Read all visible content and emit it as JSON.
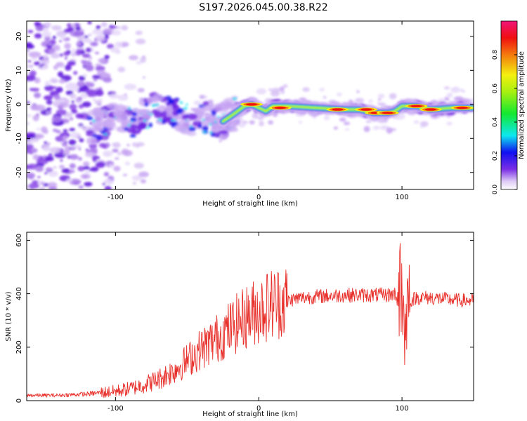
{
  "title": "S197.2026.045.00.38.R22",
  "chart_data": [
    {
      "type": "heatmap",
      "title": "S197.2026.045.00.38.R22",
      "xlabel": "Height of straight line (km)",
      "ylabel": "Frequency (Hz)",
      "xlim": [
        -162,
        150
      ],
      "ylim": [
        -25,
        24.5
      ],
      "xticks": [
        -100,
        0,
        100
      ],
      "yticks": [
        -20,
        -10,
        0,
        10,
        20
      ],
      "colorbar": {
        "label": "Normalized spectral amplitude",
        "range": [
          0,
          1
        ],
        "ticks": [
          0.0,
          0.2,
          0.4,
          0.6,
          0.8
        ]
      },
      "ridge": {
        "x": [
          -115,
          -105,
          -95,
          -85,
          -75,
          -65,
          -55,
          -45,
          -35,
          -25,
          -18,
          -10,
          -5,
          0,
          5,
          10,
          20,
          40,
          60,
          70,
          80,
          90,
          95,
          100,
          105,
          110,
          120,
          135,
          150
        ],
        "freq": [
          -6.5,
          -5,
          -3.5,
          -5.5,
          -1.5,
          -2,
          -3,
          -3.5,
          -4,
          -5,
          -3,
          -0.5,
          0,
          -1,
          -2,
          -0.5,
          -0.5,
          -1,
          -1.5,
          -1.5,
          -2.5,
          -2.5,
          -2,
          -0.5,
          -0.5,
          -0.5,
          -1.5,
          -1,
          -1
        ]
      },
      "peaks": [
        {
          "x": -5,
          "freq": 0,
          "amplitude": 0.9
        },
        {
          "x": 15,
          "freq": -1,
          "amplitude": 0.9
        },
        {
          "x": 55,
          "freq": -1.5,
          "amplitude": 0.9
        },
        {
          "x": 75,
          "freq": -1.5,
          "amplitude": 0.9
        },
        {
          "x": 82,
          "freq": -2.5,
          "amplitude": 0.9
        },
        {
          "x": 90,
          "freq": -2.5,
          "amplitude": 0.9
        },
        {
          "x": 110,
          "freq": -0.5,
          "amplitude": 0.9
        },
        {
          "x": 120,
          "freq": -1.5,
          "amplitude": 0.9
        },
        {
          "x": 142,
          "freq": -1,
          "amplitude": 0.9
        }
      ]
    },
    {
      "type": "line",
      "xlabel": "Height of straight line (km)",
      "ylabel": "SNR (10 * v/v)",
      "xlim": [
        -162,
        150
      ],
      "ylim": [
        0,
        630
      ],
      "xticks": [
        -100,
        0,
        100
      ],
      "yticks": [
        0,
        200,
        400,
        600
      ],
      "series": [
        {
          "name": "SNR",
          "color": "#e8302b",
          "x": [
            -162,
            -140,
            -120,
            -110,
            -100,
            -90,
            -80,
            -70,
            -60,
            -50,
            -40,
            -30,
            -20,
            -10,
            0,
            10,
            20,
            30,
            40,
            50,
            60,
            70,
            80,
            90,
            95,
            100,
            102,
            104,
            110,
            120,
            130,
            140,
            150
          ],
          "values": [
            20,
            20,
            25,
            30,
            35,
            45,
            60,
            80,
            110,
            150,
            195,
            230,
            270,
            310,
            340,
            365,
            375,
            385,
            390,
            392,
            395,
            395,
            395,
            395,
            400,
            395,
            250,
            370,
            385,
            385,
            380,
            375,
            375
          ]
        }
      ]
    }
  ]
}
